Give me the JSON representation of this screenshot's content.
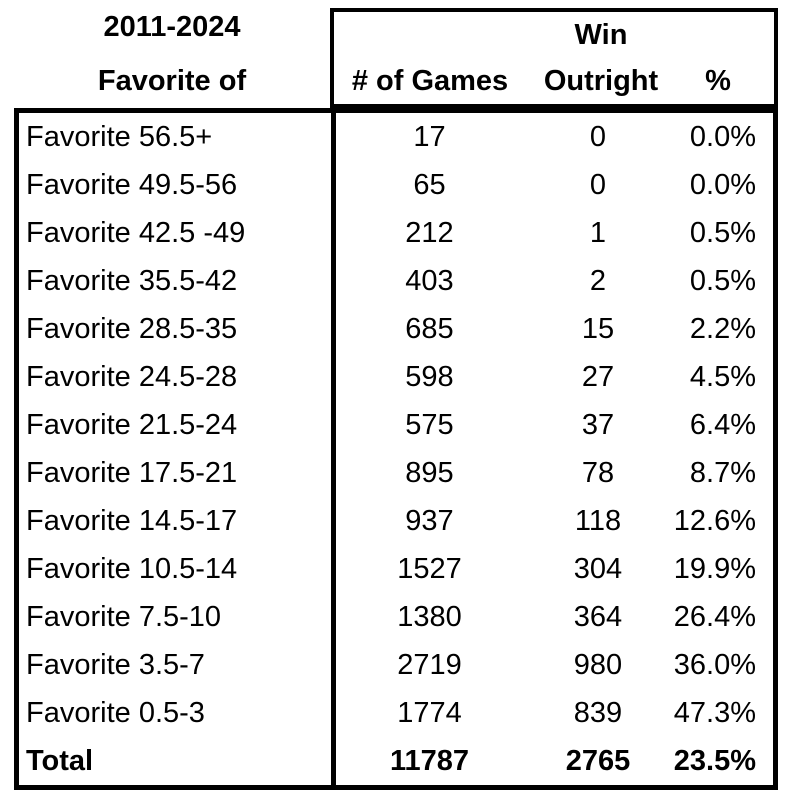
{
  "header": {
    "period": "2011-2024",
    "row_label_title": "Favorite of",
    "win_label": "Win",
    "col_games": "# of Games",
    "col_outright": "Outright",
    "col_pct": "%"
  },
  "rows": [
    {
      "label": "Favorite 56.5+",
      "games": "17",
      "outright": "0",
      "pct": "0.0%"
    },
    {
      "label": "Favorite 49.5-56",
      "games": "65",
      "outright": "0",
      "pct": "0.0%"
    },
    {
      "label": "Favorite 42.5 -49",
      "games": "212",
      "outright": "1",
      "pct": "0.5%"
    },
    {
      "label": "Favorite 35.5-42",
      "games": "403",
      "outright": "2",
      "pct": "0.5%"
    },
    {
      "label": "Favorite 28.5-35",
      "games": "685",
      "outright": "15",
      "pct": "2.2%"
    },
    {
      "label": "Favorite 24.5-28",
      "games": "598",
      "outright": "27",
      "pct": "4.5%"
    },
    {
      "label": "Favorite 21.5-24",
      "games": "575",
      "outright": "37",
      "pct": "6.4%"
    },
    {
      "label": "Favorite 17.5-21",
      "games": "895",
      "outright": "78",
      "pct": "8.7%"
    },
    {
      "label": "Favorite 14.5-17",
      "games": "937",
      "outright": "118",
      "pct": "12.6%"
    },
    {
      "label": "Favorite 10.5-14",
      "games": "1527",
      "outright": "304",
      "pct": "19.9%"
    },
    {
      "label": "Favorite 7.5-10",
      "games": "1380",
      "outright": "364",
      "pct": "26.4%"
    },
    {
      "label": "Favorite 3.5-7",
      "games": "2719",
      "outright": "980",
      "pct": "36.0%"
    },
    {
      "label": "Favorite 0.5-3",
      "games": "1774",
      "outright": "839",
      "pct": "47.3%"
    }
  ],
  "total": {
    "label": "Total",
    "games": "11787",
    "outright": "2765",
    "pct": "23.5%"
  },
  "colors": {
    "text": "#000000",
    "background": "#ffffff",
    "border": "#000000"
  },
  "chart_data": {
    "type": "table",
    "title": "2011-2024 Favorite of — Win Outright",
    "columns": [
      "Favorite of",
      "# of Games",
      "Win Outright",
      "%"
    ],
    "rows": [
      [
        "Favorite 56.5+",
        17,
        0,
        "0.0%"
      ],
      [
        "Favorite 49.5-56",
        65,
        0,
        "0.0%"
      ],
      [
        "Favorite 42.5 -49",
        212,
        1,
        "0.5%"
      ],
      [
        "Favorite 35.5-42",
        403,
        2,
        "0.5%"
      ],
      [
        "Favorite 28.5-35",
        685,
        15,
        "2.2%"
      ],
      [
        "Favorite 24.5-28",
        598,
        27,
        "4.5%"
      ],
      [
        "Favorite 21.5-24",
        575,
        37,
        "6.4%"
      ],
      [
        "Favorite 17.5-21",
        895,
        78,
        "8.7%"
      ],
      [
        "Favorite 14.5-17",
        937,
        118,
        "12.6%"
      ],
      [
        "Favorite 10.5-14",
        1527,
        304,
        "19.9%"
      ],
      [
        "Favorite 7.5-10",
        1380,
        364,
        "26.4%"
      ],
      [
        "Favorite 3.5-7",
        2719,
        980,
        "36.0%"
      ],
      [
        "Favorite 0.5-3",
        1774,
        839,
        "47.3%"
      ]
    ],
    "total_row": [
      "Total",
      11787,
      2765,
      "23.5%"
    ]
  }
}
